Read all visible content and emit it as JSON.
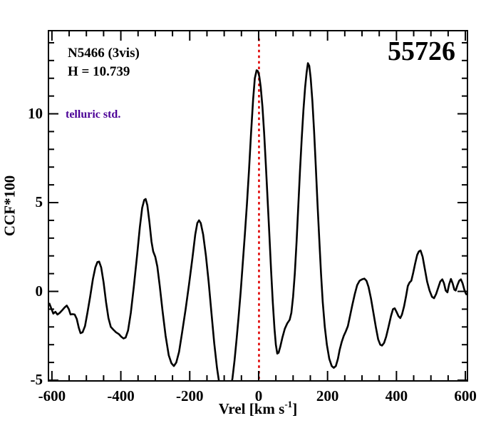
{
  "figure": {
    "background": "#ffffff",
    "frame_color": "#000000"
  },
  "annotations": {
    "star_label": "N5466 (3vis)",
    "hmag_label": "H = 10.739",
    "telluric_label": "telluric std.",
    "telluric_color": "#4b0096",
    "mjd_label": "55726"
  },
  "chart_data": {
    "type": "line",
    "title": "55726",
    "xlabel_parts": {
      "pre": "Vrel [km s",
      "sup": "-1",
      "post": "]"
    },
    "ylabel": "CCF*100",
    "xlim": [
      -608,
      604
    ],
    "ylim": [
      -5,
      14.64
    ],
    "grid": false,
    "legend": "none",
    "xticks": [
      {
        "v": -600,
        "label": "-600"
      },
      {
        "v": -400,
        "label": "-400"
      },
      {
        "v": -200,
        "label": "-200"
      },
      {
        "v": 0,
        "label": "0"
      },
      {
        "v": 200,
        "label": "200"
      },
      {
        "v": 400,
        "label": "400"
      },
      {
        "v": 600,
        "label": "600"
      }
    ],
    "yticks": [
      {
        "v": -5,
        "label": "-5"
      },
      {
        "v": 0,
        "label": "0"
      },
      {
        "v": 5,
        "label": "5"
      },
      {
        "v": 10,
        "label": "10"
      }
    ],
    "x_minor_step": 50,
    "y_minor_step": 1,
    "marker_line": {
      "x": 1,
      "color": "#e00000",
      "style": "dotted",
      "note": "zero-velocity reference"
    },
    "series": [
      {
        "name": "CCF",
        "color": "#000000",
        "points": [
          [
            -608,
            -0.65
          ],
          [
            -602,
            -0.95
          ],
          [
            -596,
            -1.25
          ],
          [
            -590,
            -1.15
          ],
          [
            -584,
            -1.3
          ],
          [
            -577,
            -1.2
          ],
          [
            -570,
            -1.05
          ],
          [
            -563,
            -0.9
          ],
          [
            -557,
            -0.8
          ],
          [
            -551,
            -1.0
          ],
          [
            -546,
            -1.3
          ],
          [
            -540,
            -1.28
          ],
          [
            -534,
            -1.3
          ],
          [
            -528,
            -1.55
          ],
          [
            -522,
            -2.05
          ],
          [
            -517,
            -2.35
          ],
          [
            -511,
            -2.3
          ],
          [
            -504,
            -1.95
          ],
          [
            -497,
            -1.2
          ],
          [
            -489,
            -0.3
          ],
          [
            -481,
            0.7
          ],
          [
            -474,
            1.35
          ],
          [
            -468,
            1.65
          ],
          [
            -463,
            1.68
          ],
          [
            -457,
            1.35
          ],
          [
            -450,
            0.5
          ],
          [
            -443,
            -0.6
          ],
          [
            -436,
            -1.5
          ],
          [
            -429,
            -2.0
          ],
          [
            -422,
            -2.15
          ],
          [
            -414,
            -2.3
          ],
          [
            -406,
            -2.4
          ],
          [
            -399,
            -2.55
          ],
          [
            -392,
            -2.65
          ],
          [
            -386,
            -2.6
          ],
          [
            -379,
            -2.2
          ],
          [
            -371,
            -1.2
          ],
          [
            -362,
            0.3
          ],
          [
            -353,
            2.0
          ],
          [
            -345,
            3.6
          ],
          [
            -338,
            4.7
          ],
          [
            -332,
            5.15
          ],
          [
            -328,
            5.2
          ],
          [
            -323,
            4.85
          ],
          [
            -317,
            3.9
          ],
          [
            -311,
            2.8
          ],
          [
            -306,
            2.25
          ],
          [
            -300,
            1.95
          ],
          [
            -294,
            1.4
          ],
          [
            -287,
            0.3
          ],
          [
            -279,
            -1.1
          ],
          [
            -270,
            -2.5
          ],
          [
            -261,
            -3.6
          ],
          [
            -253,
            -4.05
          ],
          [
            -246,
            -4.2
          ],
          [
            -239,
            -4.0
          ],
          [
            -231,
            -3.4
          ],
          [
            -222,
            -2.3
          ],
          [
            -212,
            -1.0
          ],
          [
            -202,
            0.4
          ],
          [
            -192,
            1.9
          ],
          [
            -184,
            3.2
          ],
          [
            -178,
            3.85
          ],
          [
            -173,
            4.0
          ],
          [
            -168,
            3.85
          ],
          [
            -161,
            3.2
          ],
          [
            -153,
            2.0
          ],
          [
            -145,
            0.5
          ],
          [
            -137,
            -1.2
          ],
          [
            -129,
            -2.9
          ],
          [
            -121,
            -4.3
          ],
          [
            -114,
            -5.2
          ],
          [
            -107,
            -5.9
          ],
          [
            -99,
            -6.3
          ],
          [
            -91,
            -6.2
          ],
          [
            -83,
            -5.7
          ],
          [
            -76,
            -4.9
          ],
          [
            -70,
            -3.9
          ],
          [
            -64,
            -2.7
          ],
          [
            -58,
            -1.4
          ],
          [
            -52,
            0.0
          ],
          [
            -46,
            1.6
          ],
          [
            -40,
            3.2
          ],
          [
            -34,
            4.9
          ],
          [
            -28,
            6.8
          ],
          [
            -22,
            8.9
          ],
          [
            -16,
            10.8
          ],
          [
            -11,
            12.0
          ],
          [
            -6,
            12.45
          ],
          [
            -2,
            12.4
          ],
          [
            2,
            12.1
          ],
          [
            6,
            11.5
          ],
          [
            11,
            10.4
          ],
          [
            16,
            8.9
          ],
          [
            21,
            7.1
          ],
          [
            26,
            5.2
          ],
          [
            31,
            3.2
          ],
          [
            36,
            1.2
          ],
          [
            41,
            -0.6
          ],
          [
            46,
            -2.1
          ],
          [
            50,
            -3.0
          ],
          [
            54,
            -3.5
          ],
          [
            58,
            -3.45
          ],
          [
            63,
            -3.1
          ],
          [
            69,
            -2.6
          ],
          [
            76,
            -2.1
          ],
          [
            83,
            -1.8
          ],
          [
            90,
            -1.6
          ],
          [
            95,
            -1.2
          ],
          [
            100,
            -0.3
          ],
          [
            105,
            1.0
          ],
          [
            110,
            2.8
          ],
          [
            115,
            4.8
          ],
          [
            120,
            6.8
          ],
          [
            125,
            8.6
          ],
          [
            130,
            10.2
          ],
          [
            135,
            11.5
          ],
          [
            139,
            12.3
          ],
          [
            143,
            12.85
          ],
          [
            147,
            12.7
          ],
          [
            151,
            12.0
          ],
          [
            156,
            10.7
          ],
          [
            161,
            9.0
          ],
          [
            166,
            7.0
          ],
          [
            171,
            4.9
          ],
          [
            176,
            2.9
          ],
          [
            181,
            1.0
          ],
          [
            186,
            -0.6
          ],
          [
            192,
            -2.0
          ],
          [
            198,
            -3.0
          ],
          [
            205,
            -3.8
          ],
          [
            212,
            -4.2
          ],
          [
            218,
            -4.3
          ],
          [
            224,
            -4.2
          ],
          [
            230,
            -3.8
          ],
          [
            235,
            -3.3
          ],
          [
            241,
            -2.85
          ],
          [
            247,
            -2.5
          ],
          [
            253,
            -2.25
          ],
          [
            259,
            -1.95
          ],
          [
            265,
            -1.4
          ],
          [
            272,
            -0.75
          ],
          [
            279,
            -0.15
          ],
          [
            286,
            0.35
          ],
          [
            293,
            0.6
          ],
          [
            300,
            0.68
          ],
          [
            307,
            0.72
          ],
          [
            313,
            0.6
          ],
          [
            319,
            0.25
          ],
          [
            326,
            -0.4
          ],
          [
            333,
            -1.2
          ],
          [
            340,
            -2.0
          ],
          [
            347,
            -2.7
          ],
          [
            353,
            -3.0
          ],
          [
            358,
            -3.05
          ],
          [
            364,
            -2.9
          ],
          [
            370,
            -2.55
          ],
          [
            377,
            -2.0
          ],
          [
            384,
            -1.4
          ],
          [
            390,
            -1.0
          ],
          [
            395,
            -0.95
          ],
          [
            400,
            -1.15
          ],
          [
            406,
            -1.4
          ],
          [
            411,
            -1.5
          ],
          [
            416,
            -1.3
          ],
          [
            422,
            -0.85
          ],
          [
            428,
            -0.25
          ],
          [
            433,
            0.3
          ],
          [
            438,
            0.5
          ],
          [
            443,
            0.6
          ],
          [
            448,
            1.0
          ],
          [
            454,
            1.55
          ],
          [
            460,
            2.05
          ],
          [
            465,
            2.25
          ],
          [
            470,
            2.3
          ],
          [
            476,
            1.95
          ],
          [
            482,
            1.3
          ],
          [
            489,
            0.55
          ],
          [
            496,
            0.05
          ],
          [
            503,
            -0.3
          ],
          [
            509,
            -0.38
          ],
          [
            515,
            -0.15
          ],
          [
            521,
            0.2
          ],
          [
            527,
            0.55
          ],
          [
            533,
            0.68
          ],
          [
            538,
            0.45
          ],
          [
            543,
            0.05
          ],
          [
            548,
            -0.05
          ],
          [
            553,
            0.4
          ],
          [
            558,
            0.7
          ],
          [
            563,
            0.45
          ],
          [
            568,
            0.1
          ],
          [
            572,
            0.05
          ],
          [
            577,
            0.35
          ],
          [
            582,
            0.6
          ],
          [
            587,
            0.68
          ],
          [
            592,
            0.45
          ],
          [
            597,
            0.1
          ],
          [
            601,
            -0.1
          ],
          [
            604,
            -0.2
          ]
        ]
      }
    ]
  }
}
